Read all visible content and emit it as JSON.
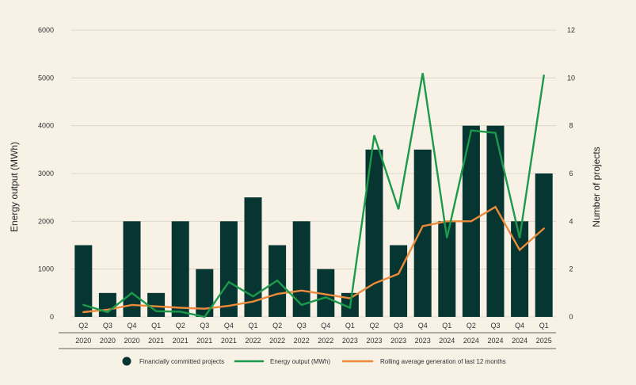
{
  "chart_data": {
    "type": "bar",
    "categories": [
      {
        "quarter": "Q2",
        "year": "2020"
      },
      {
        "quarter": "Q3",
        "year": "2020"
      },
      {
        "quarter": "Q4",
        "year": "2020"
      },
      {
        "quarter": "Q1",
        "year": "2021"
      },
      {
        "quarter": "Q2",
        "year": "2021"
      },
      {
        "quarter": "Q3",
        "year": "2021"
      },
      {
        "quarter": "Q4",
        "year": "2021"
      },
      {
        "quarter": "Q1",
        "year": "2022"
      },
      {
        "quarter": "Q2",
        "year": "2022"
      },
      {
        "quarter": "Q3",
        "year": "2022"
      },
      {
        "quarter": "Q4",
        "year": "2022"
      },
      {
        "quarter": "Q1",
        "year": "2023"
      },
      {
        "quarter": "Q2",
        "year": "2023"
      },
      {
        "quarter": "Q3",
        "year": "2023"
      },
      {
        "quarter": "Q4",
        "year": "2023"
      },
      {
        "quarter": "Q1",
        "year": "2024"
      },
      {
        "quarter": "Q2",
        "year": "2024"
      },
      {
        "quarter": "Q3",
        "year": "2024"
      },
      {
        "quarter": "Q4",
        "year": "2024"
      },
      {
        "quarter": "Q1",
        "year": "2025"
      }
    ],
    "series": [
      {
        "name": "Financially committed projects",
        "type": "bar",
        "axis": "right",
        "color": "#073532",
        "values": [
          3,
          1,
          4,
          1,
          4,
          2,
          4,
          5,
          3,
          4,
          2,
          1,
          7,
          3,
          7,
          4,
          8,
          8,
          4,
          6
        ]
      },
      {
        "name": "Energy output (MWh)",
        "type": "line",
        "axis": "left",
        "color": "#1b9a4a",
        "values": [
          250,
          100,
          500,
          120,
          110,
          0,
          730,
          430,
          760,
          250,
          410,
          190,
          3800,
          2250,
          5100,
          1650,
          3900,
          3850,
          1650,
          5050
        ]
      },
      {
        "name": "Rolling average generation of last 12 months",
        "type": "line",
        "axis": "left",
        "color": "#ec8b3a",
        "values": [
          100,
          150,
          250,
          220,
          190,
          170,
          230,
          320,
          480,
          550,
          470,
          390,
          700,
          900,
          1900,
          2000,
          2000,
          2300,
          1400,
          1850
        ]
      }
    ],
    "y_left": {
      "label": "Energy output (MWh)",
      "ticks": [
        "0",
        "1000",
        "2000",
        "3000",
        "4000",
        "5000",
        "6000"
      ],
      "range": [
        0,
        6000
      ]
    },
    "y_right": {
      "label": "Number of projects",
      "ticks": [
        "0",
        "2",
        "4",
        "6",
        "8",
        "10",
        "12"
      ],
      "range": [
        0,
        12
      ]
    },
    "grid": true,
    "legend_position": "bottom"
  }
}
